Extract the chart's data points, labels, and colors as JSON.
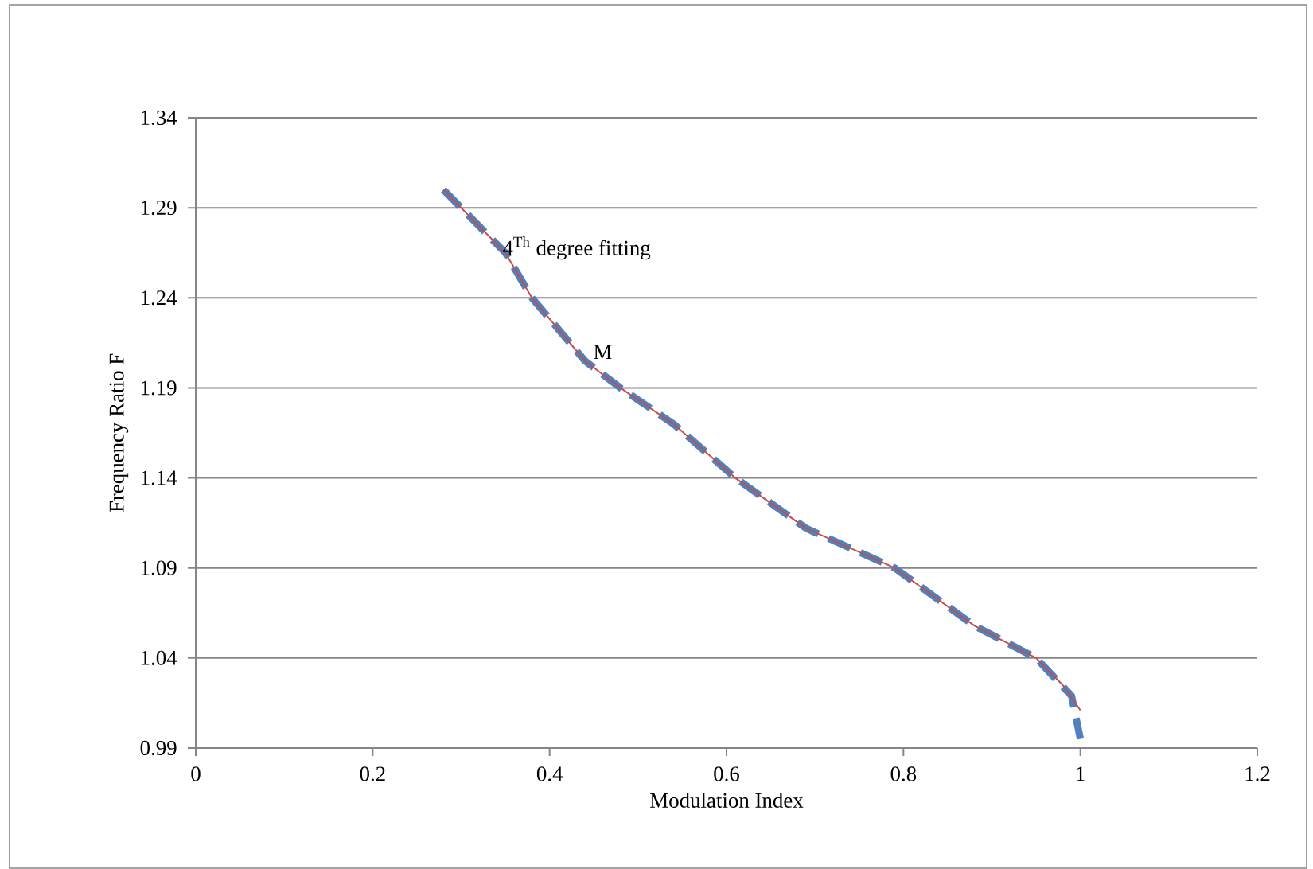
{
  "chart_data": {
    "type": "line",
    "xlabel": "Modulation Index",
    "ylabel": "Frequency Ratio F",
    "xlim": [
      0,
      1.2
    ],
    "ylim": [
      0.99,
      1.34
    ],
    "xticks": [
      0,
      0.2,
      0.4,
      0.6,
      0.8,
      1,
      1.2
    ],
    "yticks": [
      0.99,
      1.04,
      1.09,
      1.14,
      1.19,
      1.24,
      1.29,
      1.34
    ],
    "grid": "y",
    "marker": "none",
    "series": [
      {
        "name": "M",
        "color": "#4f81bd",
        "line_style": "dashed",
        "x": [
          0.28,
          0.35,
          0.38,
          0.44,
          0.48,
          0.54,
          0.61,
          0.69,
          0.79,
          0.88,
          0.95,
          0.99,
          1.0
        ],
        "values": [
          1.3,
          1.265,
          1.24,
          1.205,
          1.19,
          1.17,
          1.14,
          1.112,
          1.09,
          1.058,
          1.04,
          1.019,
          0.995
        ]
      },
      {
        "name": "4$^{Th}$ degree fitting",
        "color": "#c0504d",
        "line_style": "solid",
        "x": [
          0.28,
          0.35,
          0.38,
          0.44,
          0.48,
          0.54,
          0.61,
          0.69,
          0.79,
          0.88,
          0.95,
          0.98,
          1.0
        ],
        "values": [
          1.3,
          1.265,
          1.24,
          1.205,
          1.19,
          1.17,
          1.14,
          1.112,
          1.09,
          1.058,
          1.04,
          1.025,
          1.011
        ]
      }
    ]
  }
}
